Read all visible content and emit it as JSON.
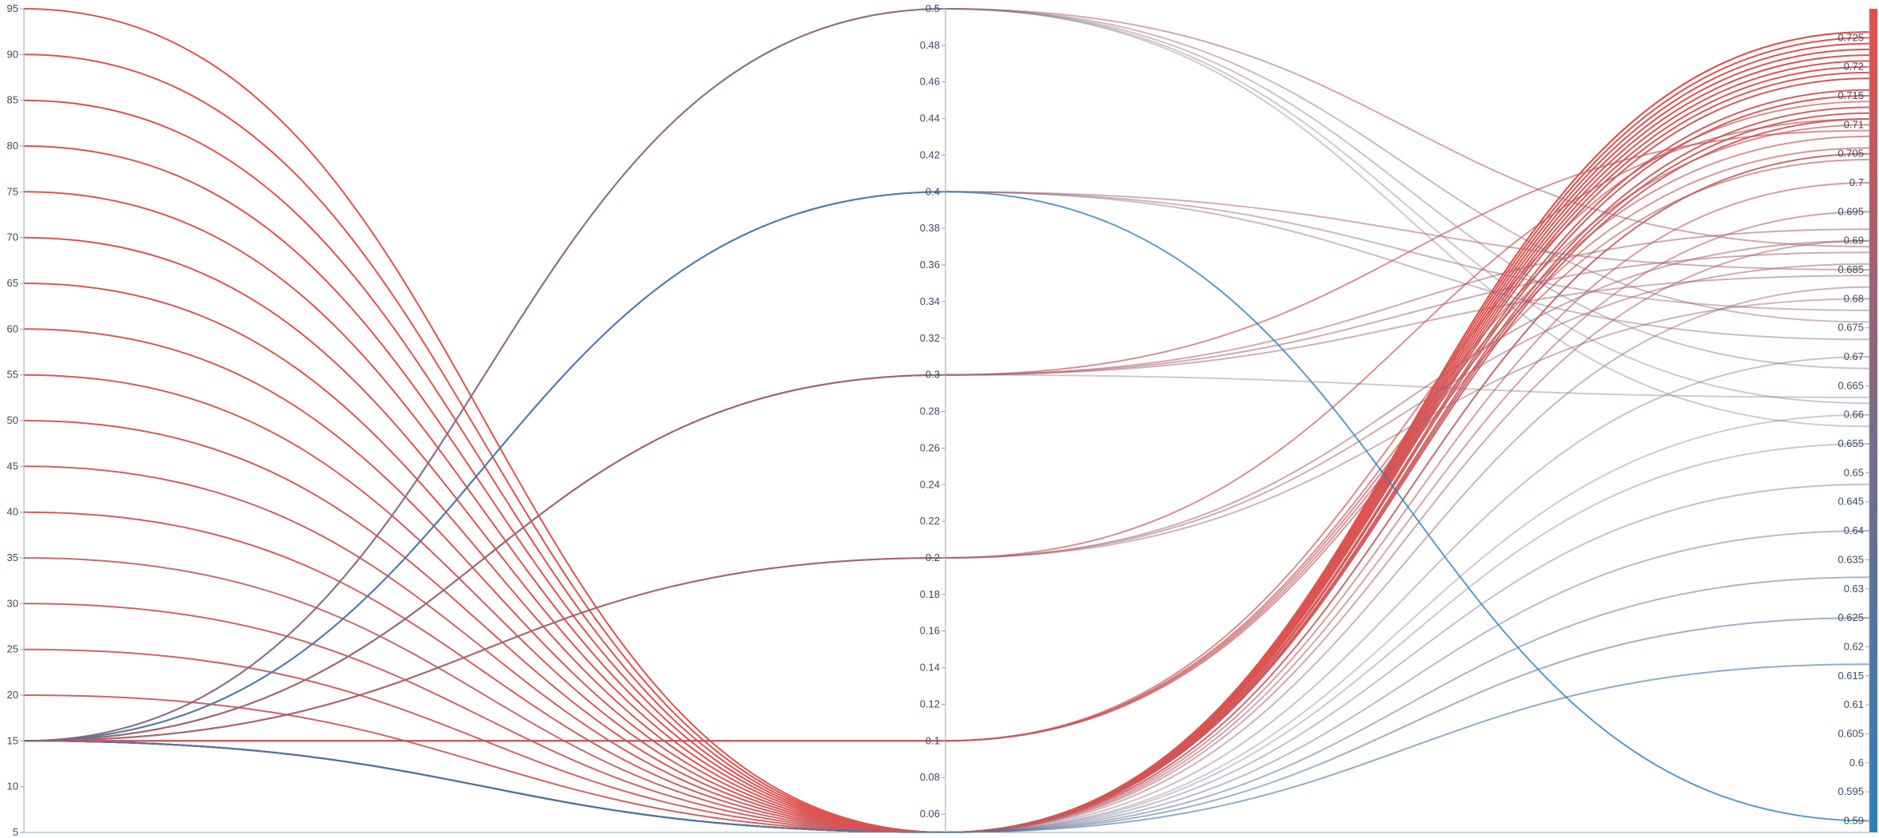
{
  "chart_data": {
    "type": "parallel_coordinates",
    "grid": false,
    "colors": {
      "high": "#e8504a",
      "mid": "#7a6a85",
      "low": "#2e7fb8",
      "axis": "#9aa3b5",
      "text": "#3b4a63"
    },
    "axes": [
      {
        "range": [
          5,
          95
        ],
        "ticks": [
          "95",
          "90",
          "85",
          "80",
          "75",
          "70",
          "65",
          "60",
          "55",
          "50",
          "45",
          "40",
          "35",
          "30",
          "25",
          "20",
          "15",
          "10",
          "5"
        ]
      },
      {
        "range": [
          0.05,
          0.5
        ],
        "ticks": [
          "0.5",
          "0.48",
          "0.46",
          "0.44",
          "0.42",
          "0.4",
          "0.38",
          "0.36",
          "0.34",
          "0.32",
          "0.3",
          "0.28",
          "0.26",
          "0.24",
          "0.22",
          "0.2",
          "0.18",
          "0.16",
          "0.14",
          "0.12",
          "0.1",
          "0.08",
          "0.06"
        ]
      },
      {
        "range": [
          0.588,
          0.73
        ],
        "ticks": [
          "0.725",
          "0.72",
          "0.715",
          "0.71",
          "0.705",
          "0.7",
          "0.695",
          "0.69",
          "0.685",
          "0.68",
          "0.675",
          "0.67",
          "0.665",
          "0.66",
          "0.655",
          "0.65",
          "0.645",
          "0.64",
          "0.635",
          "0.63",
          "0.625",
          "0.62",
          "0.615",
          "0.61",
          "0.605",
          "0.6",
          "0.595",
          "0.59"
        ],
        "colorbar": true
      }
    ],
    "lines": [
      [
        95,
        0.05,
        0.726
      ],
      [
        90,
        0.05,
        0.726
      ],
      [
        85,
        0.05,
        0.724
      ],
      [
        80,
        0.05,
        0.725
      ],
      [
        75,
        0.05,
        0.723
      ],
      [
        70,
        0.05,
        0.722
      ],
      [
        65,
        0.05,
        0.721
      ],
      [
        60,
        0.05,
        0.72
      ],
      [
        55,
        0.05,
        0.719
      ],
      [
        50,
        0.05,
        0.718
      ],
      [
        45,
        0.05,
        0.716
      ],
      [
        40,
        0.05,
        0.715
      ],
      [
        35,
        0.05,
        0.705
      ],
      [
        30,
        0.05,
        0.712
      ],
      [
        25,
        0.05,
        0.711
      ],
      [
        20,
        0.05,
        0.713
      ],
      [
        15,
        0.05,
        0.69
      ],
      [
        15,
        0.05,
        0.7
      ],
      [
        15,
        0.05,
        0.695
      ],
      [
        15,
        0.05,
        0.682
      ],
      [
        15,
        0.05,
        0.67
      ],
      [
        15,
        0.05,
        0.66
      ],
      [
        15,
        0.05,
        0.655
      ],
      [
        15,
        0.05,
        0.648
      ],
      [
        15,
        0.05,
        0.64
      ],
      [
        15,
        0.05,
        0.632
      ],
      [
        15,
        0.05,
        0.625
      ],
      [
        15,
        0.05,
        0.617
      ],
      [
        15,
        0.1,
        0.714
      ],
      [
        15,
        0.1,
        0.71
      ],
      [
        15,
        0.1,
        0.708
      ],
      [
        15,
        0.1,
        0.706
      ],
      [
        15,
        0.1,
        0.704
      ],
      [
        15,
        0.2,
        0.711
      ],
      [
        15,
        0.2,
        0.69
      ],
      [
        15,
        0.2,
        0.686
      ],
      [
        15,
        0.2,
        0.68
      ],
      [
        15,
        0.3,
        0.709
      ],
      [
        15,
        0.3,
        0.692
      ],
      [
        15,
        0.3,
        0.688
      ],
      [
        15,
        0.3,
        0.684
      ],
      [
        15,
        0.3,
        0.663
      ],
      [
        15,
        0.4,
        0.685
      ],
      [
        15,
        0.4,
        0.678
      ],
      [
        15,
        0.4,
        0.673
      ],
      [
        15,
        0.4,
        0.59
      ],
      [
        15,
        0.5,
        0.689
      ],
      [
        15,
        0.5,
        0.676
      ],
      [
        15,
        0.5,
        0.668
      ],
      [
        15,
        0.5,
        0.662
      ],
      [
        15,
        0.5,
        0.658
      ]
    ]
  }
}
